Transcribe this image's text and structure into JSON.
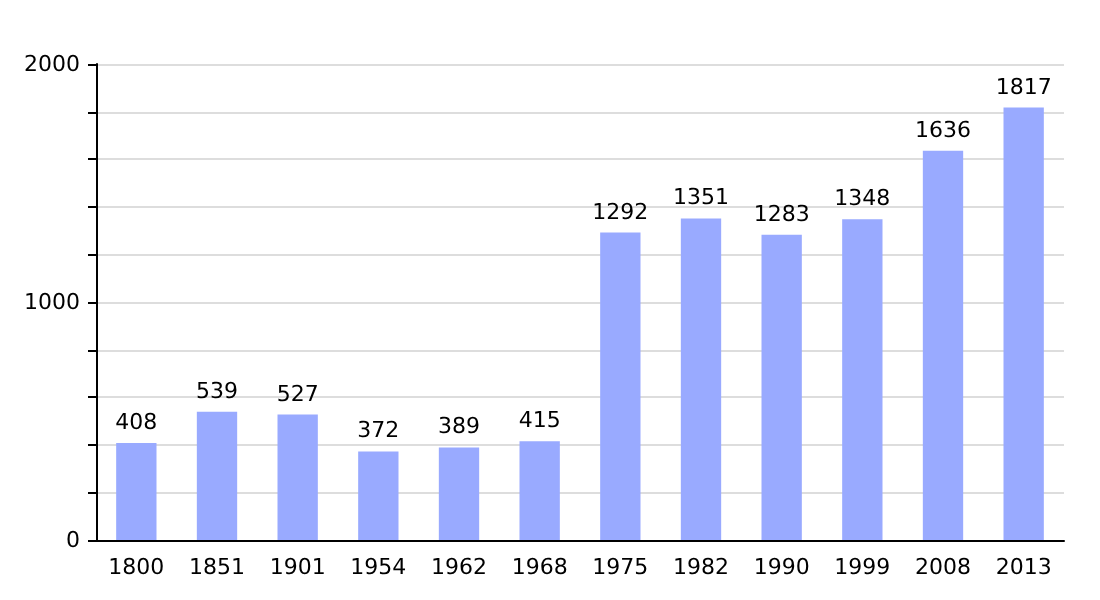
{
  "chart_data": {
    "type": "bar",
    "categories": [
      "1800",
      "1851",
      "1901",
      "1954",
      "1962",
      "1968",
      "1975",
      "1982",
      "1990",
      "1999",
      "2008",
      "2013"
    ],
    "values": [
      408,
      539,
      527,
      372,
      389,
      415,
      1292,
      1351,
      1283,
      1348,
      1636,
      1817
    ],
    "color": "#99aaff",
    "ylim": [
      0,
      2000
    ],
    "yticks": [
      0,
      {
        "value": 200,
        "label": null
      },
      {
        "value": 400,
        "label": null
      },
      {
        "value": 600,
        "label": null
      },
      {
        "value": 800,
        "label": null
      },
      1000,
      {
        "value": 1200,
        "label": null
      },
      {
        "value": 1400,
        "label": null
      },
      {
        "value": 1600,
        "label": null
      },
      {
        "value": 1800,
        "label": null
      },
      2000
    ],
    "grid": true,
    "data_labels": true
  }
}
